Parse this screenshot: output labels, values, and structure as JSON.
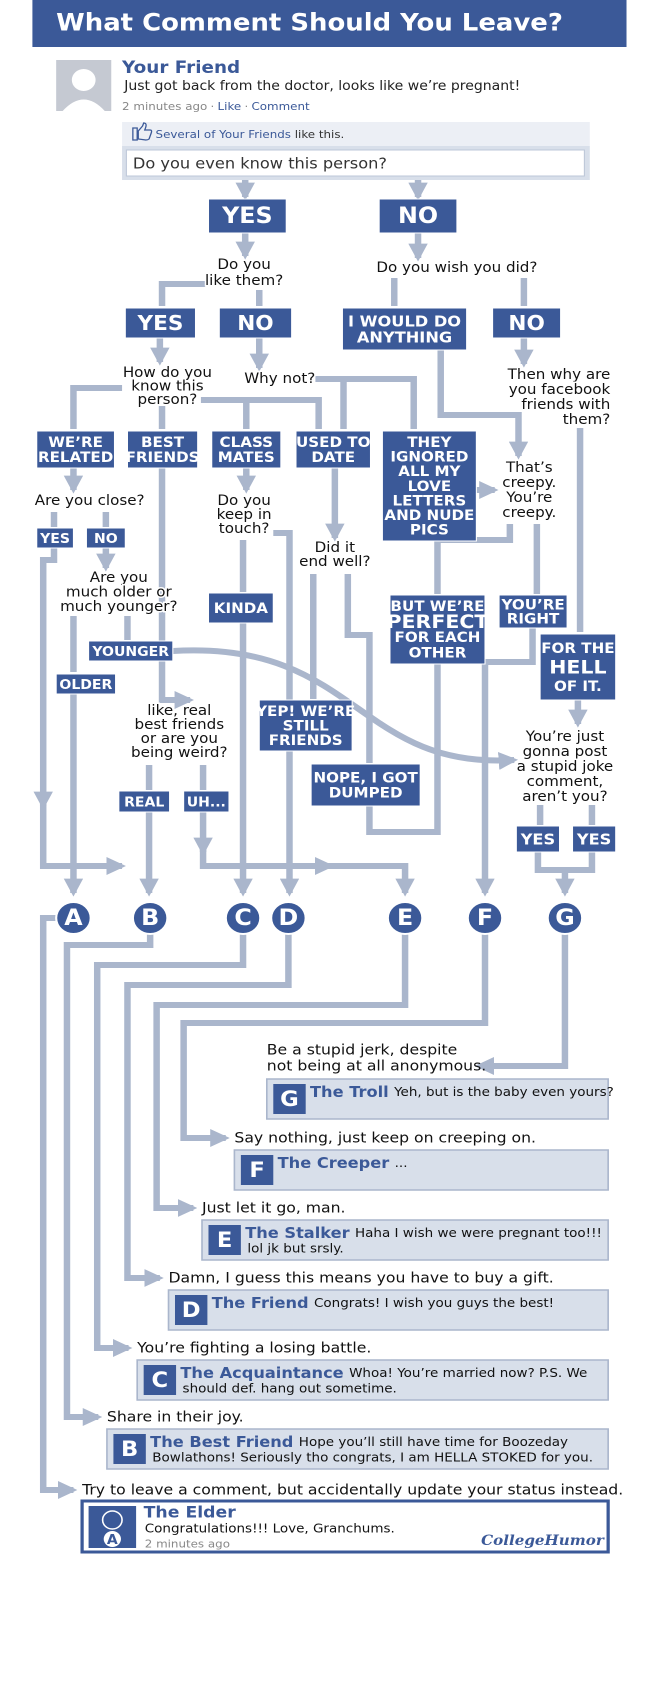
{
  "header": {
    "title": "What Comment Should You Leave?"
  },
  "post": {
    "name": "Your Friend",
    "text": "Just got back from the doctor, looks like we’re pregnant!",
    "time": "2 minutes ago",
    "separator": "·",
    "like": "Like",
    "comment": "Comment",
    "likes_prefix": "Several of Your Friends",
    "likes_suffix": " like this.",
    "question": "Do you even know this person?"
  },
  "nodes": [
    {
      "lines": [
        "YES"
      ]
    },
    {
      "lines": [
        "NO"
      ]
    },
    {
      "lines": [
        "Do you",
        "like them?"
      ]
    },
    {
      "lines": [
        "Do you wish you did?"
      ]
    },
    {
      "lines": [
        "YES"
      ]
    },
    {
      "lines": [
        "NO"
      ]
    },
    {
      "lines": [
        "I WOULD DO",
        "ANYTHING"
      ]
    },
    {
      "lines": [
        "NO"
      ]
    },
    {
      "lines": [
        "How do you",
        "know this",
        "person?"
      ]
    },
    {
      "lines": [
        "Why not?"
      ]
    },
    {
      "lines": [
        "Then why are",
        "you facebook",
        "friends with",
        "them?"
      ]
    },
    {
      "lines": [
        "WE’RE",
        "RELATED"
      ]
    },
    {
      "lines": [
        "BEST",
        "FRIENDS"
      ]
    },
    {
      "lines": [
        "CLASS",
        "MATES"
      ]
    },
    {
      "lines": [
        "USED TO",
        "DATE"
      ]
    },
    {
      "lines": [
        "THEY",
        "IGNORED",
        "ALL MY",
        "LOVE",
        "LETTERS",
        "AND NUDE",
        "PICS"
      ]
    },
    {
      "lines": [
        "That’s",
        "creepy.",
        "You’re",
        "creepy."
      ]
    },
    {
      "lines": [
        "Are you close?"
      ]
    },
    {
      "lines": [
        "YES"
      ]
    },
    {
      "lines": [
        "NO"
      ]
    },
    {
      "lines": [
        "Do you",
        "keep in",
        "touch?"
      ]
    },
    {
      "lines": [
        "Did it",
        "end well?"
      ]
    },
    {
      "lines": [
        "Are you",
        "much older or",
        "much younger?"
      ]
    },
    {
      "lines": [
        "KINDA"
      ]
    },
    {
      "lines": [
        "BUT WE’RE",
        "PERFECT",
        "FOR EACH",
        "OTHER"
      ]
    },
    {
      "lines": [
        "YOU’RE",
        "RIGHT"
      ]
    },
    {
      "lines": [
        "FOR THE",
        "HELL",
        "OF IT."
      ]
    },
    {
      "lines": [
        "YOUNGER"
      ]
    },
    {
      "lines": [
        "OLDER"
      ]
    },
    {
      "lines": [
        "like, real",
        "best friends",
        "or are you",
        "being weird?"
      ]
    },
    {
      "lines": [
        "YEP! WE’RE",
        "STILL",
        "FRIENDS"
      ]
    },
    {
      "lines": [
        "You’re just",
        "gonna post",
        "a stupid joke",
        "comment,",
        "aren’t you?"
      ]
    },
    {
      "lines": [
        "NOPE, I GOT",
        "DUMPED"
      ]
    },
    {
      "lines": [
        "REAL"
      ]
    },
    {
      "lines": [
        "UH..."
      ]
    },
    {
      "lines": [
        "YES"
      ]
    },
    {
      "lines": [
        "YES"
      ]
    }
  ],
  "letters": [
    "A",
    "B",
    "C",
    "D",
    "E",
    "F",
    "G"
  ],
  "outcomes": [
    {
      "letter": "G",
      "instruction": [
        "Be a stupid jerk, despite",
        "not being at all anonymous."
      ],
      "persona": "The Troll",
      "comment": [
        "Yeh, but is the baby even yours?"
      ]
    },
    {
      "letter": "F",
      "instruction": [
        "Say nothing, just keep on creeping on."
      ],
      "persona": "The Creeper",
      "comment": [
        "..."
      ]
    },
    {
      "letter": "E",
      "instruction": [
        "Just let it go, man."
      ],
      "persona": "The Stalker",
      "comment": [
        "Haha I wish we were pregnant too!!!",
        "lol jk but srsly."
      ]
    },
    {
      "letter": "D",
      "instruction": [
        "Damn, I guess this means you have to buy a gift."
      ],
      "persona": "The Friend",
      "comment": [
        "Congrats! I wish you guys the best!"
      ]
    },
    {
      "letter": "C",
      "instruction": [
        "You’re fighting a losing battle."
      ],
      "persona": "The Acquaintance",
      "comment": [
        "Whoa! You’re married now? P.S. We",
        "should def. hang out sometime."
      ]
    },
    {
      "letter": "B",
      "instruction": [
        "Share in their joy."
      ],
      "persona": "The Best Friend",
      "comment": [
        "Hope you’ll still have time for Boozeday",
        "Bowlathons! Seriously tho congrats, I am HELLA STOKED for you."
      ]
    },
    {
      "letter": "A",
      "instruction": [
        "Try to leave a comment, but accidentally update your status instead."
      ],
      "persona": "The Elder",
      "comment": [
        "Congratulations!!! Love, Granchums."
      ],
      "time": "2 minutes ago"
    }
  ],
  "footer": {
    "brand": "CollegeHumor"
  }
}
